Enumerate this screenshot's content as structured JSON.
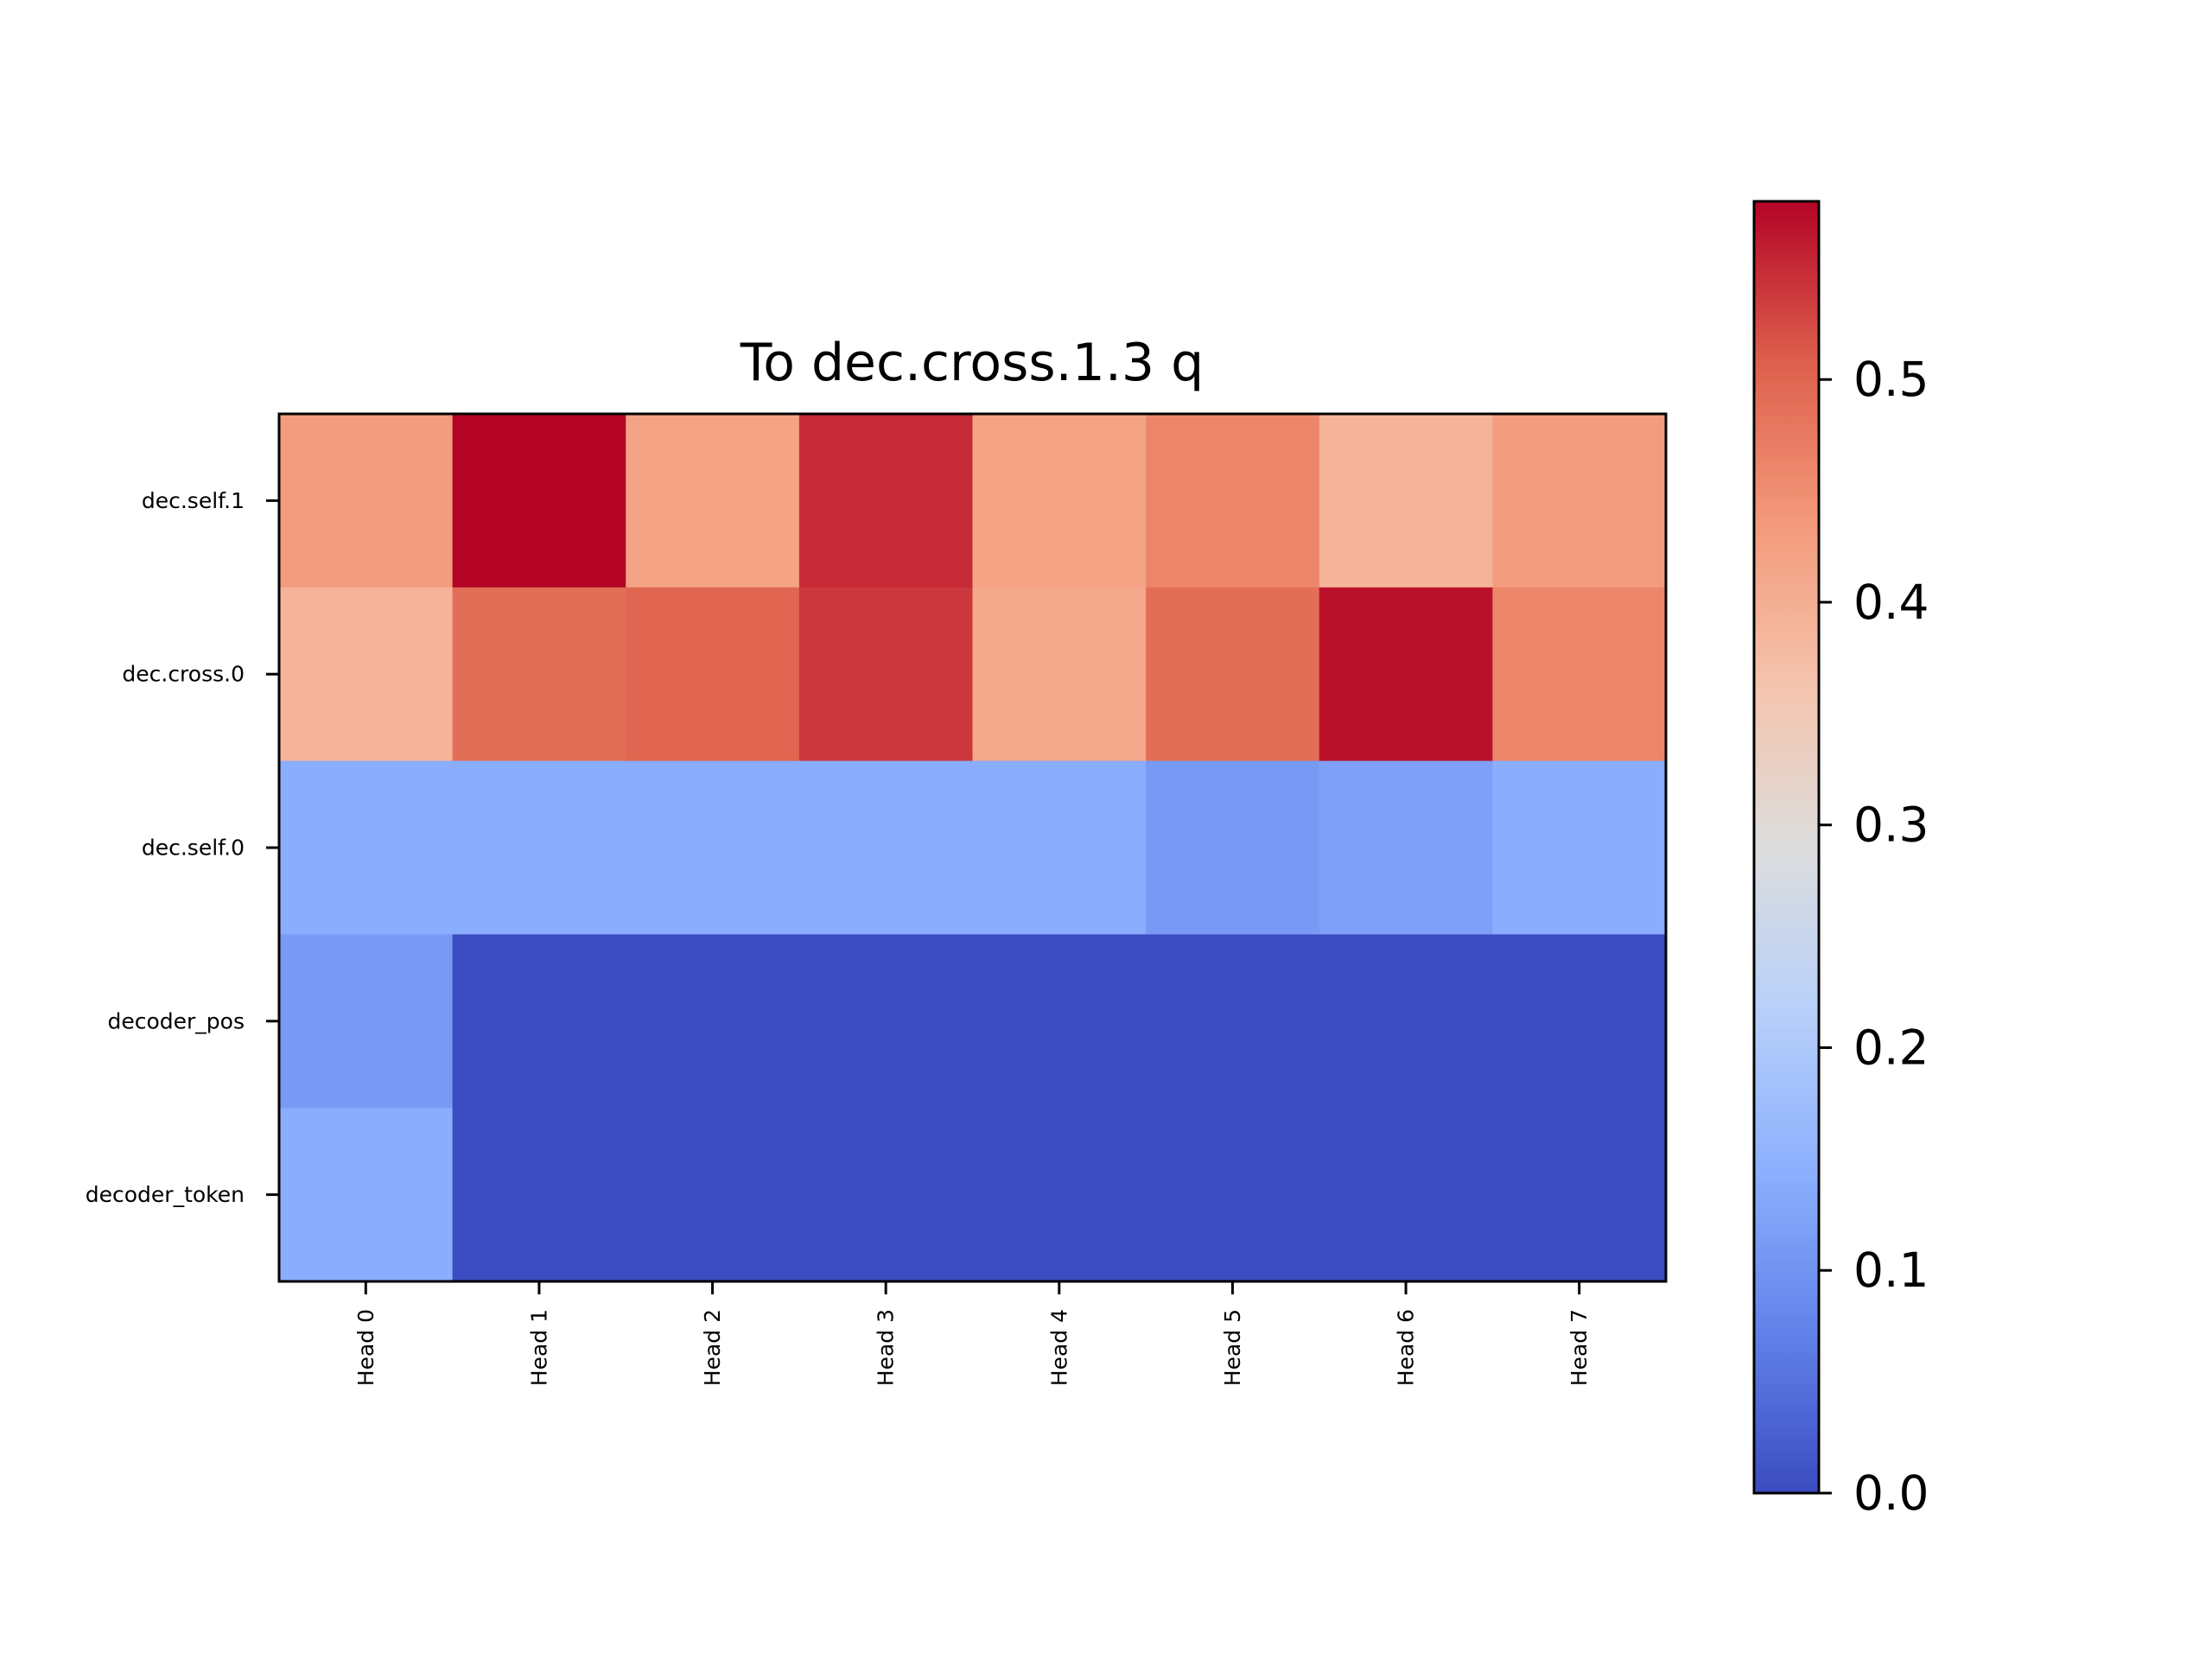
{
  "chart_data": {
    "type": "heatmap",
    "title": "To dec.cross.1.3 q",
    "x_labels": [
      "Head 0",
      "Head 1",
      "Head 2",
      "Head 3",
      "Head 4",
      "Head 5",
      "Head 6",
      "Head 7"
    ],
    "y_labels": [
      "dec.self.1",
      "dec.cross.0",
      "dec.self.0",
      "decoder_pos",
      "decoder_token"
    ],
    "values": [
      [
        0.43,
        0.58,
        0.42,
        0.55,
        0.42,
        0.46,
        0.39,
        0.43
      ],
      [
        0.39,
        0.49,
        0.5,
        0.54,
        0.41,
        0.49,
        0.57,
        0.46
      ],
      [
        0.14,
        0.14,
        0.14,
        0.14,
        0.14,
        0.11,
        0.12,
        0.14
      ],
      [
        0.11,
        0.0,
        0.0,
        0.0,
        0.0,
        0.0,
        0.0,
        0.0
      ],
      [
        0.14,
        0.0,
        0.0,
        0.0,
        0.0,
        0.0,
        0.0,
        0.0
      ]
    ],
    "colormap": "coolwarm",
    "colorbar": {
      "range": [
        0.0,
        0.58
      ],
      "ticks": [
        0.0,
        0.1,
        0.2,
        0.3,
        0.4,
        0.5
      ],
      "tick_labels": [
        "0.0",
        "0.1",
        "0.2",
        "0.3",
        "0.4",
        "0.5"
      ]
    },
    "grid": false
  }
}
